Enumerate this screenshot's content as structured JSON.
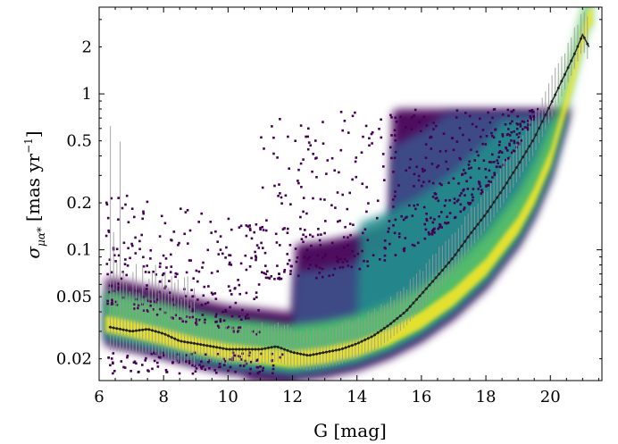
{
  "chart_data": {
    "type": "scatter",
    "subtype": "density-hexbin-with-binned-median-and-errorbars",
    "title": "",
    "xlabel": "G [mag]",
    "ylabel_symbol": "σ",
    "ylabel_subscript": "μα*",
    "ylabel_units": "[mas yr",
    "ylabel_units_sup": "−1",
    "ylabel_units_close": "]",
    "x_scale": "linear",
    "y_scale": "log",
    "xlim": [
      6.0,
      21.6
    ],
    "ylim": [
      0.0145,
      3.6
    ],
    "x_ticks": [
      6,
      8,
      10,
      12,
      14,
      16,
      18,
      20
    ],
    "x_tick_labels": [
      "6",
      "8",
      "10",
      "12",
      "14",
      "16",
      "18",
      "20"
    ],
    "y_ticks": [
      0.02,
      0.05,
      0.1,
      0.2,
      0.5,
      1,
      2
    ],
    "y_tick_labels": [
      "0.02",
      "0.05",
      "0.1",
      "0.2",
      "0.5",
      "1",
      "2"
    ],
    "grid": false,
    "legend": "none",
    "colormap": "viridis",
    "colormap_stops": [
      "#440154",
      "#3b528b",
      "#21918c",
      "#5ec962",
      "#fde725"
    ],
    "median_color": "#222222",
    "errorbar_color": "#9a9a9a",
    "outlier_color": "#440154",
    "median_curve": {
      "x": [
        6.3,
        7.0,
        7.5,
        8.0,
        8.5,
        9.0,
        9.5,
        10.0,
        10.5,
        11.0,
        11.5,
        12.0,
        12.5,
        13.0,
        13.5,
        14.0,
        14.5,
        15.0,
        15.5,
        16.0,
        16.5,
        17.0,
        17.5,
        18.0,
        18.5,
        19.0,
        19.5,
        20.0,
        20.5,
        20.8,
        21.0,
        21.2
      ],
      "y": [
        0.032,
        0.03,
        0.031,
        0.029,
        0.026,
        0.025,
        0.024,
        0.023,
        0.023,
        0.023,
        0.024,
        0.022,
        0.021,
        0.022,
        0.023,
        0.025,
        0.028,
        0.033,
        0.04,
        0.052,
        0.068,
        0.09,
        0.125,
        0.17,
        0.24,
        0.35,
        0.52,
        0.85,
        1.4,
        1.9,
        2.4,
        2.0
      ]
    },
    "density_ridge": {
      "x": [
        6.3,
        7,
        8,
        9,
        10,
        11,
        12,
        13,
        14,
        15,
        16,
        17,
        18,
        19,
        19.5,
        20,
        20.5,
        21,
        21.2
      ],
      "y": [
        0.03,
        0.028,
        0.025,
        0.022,
        0.02,
        0.019,
        0.018,
        0.019,
        0.021,
        0.025,
        0.032,
        0.045,
        0.07,
        0.13,
        0.2,
        0.35,
        0.8,
        2.0,
        2.8
      ]
    },
    "density_plateau_y": 0.8
  }
}
